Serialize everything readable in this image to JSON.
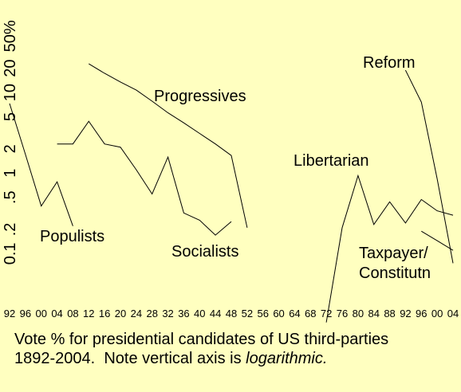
{
  "chart_data": {
    "type": "line",
    "title": "Vote % for presidential candidates of US third-parties 1892-2004.  Note vertical axis is ",
    "title_italic": "logarithmic.",
    "categories": [
      "92",
      "96",
      "00",
      "04",
      "08",
      "12",
      "16",
      "20",
      "24",
      "28",
      "32",
      "36",
      "40",
      "44",
      "48",
      "52",
      "56",
      "60",
      "64",
      "68",
      "72",
      "76",
      "80",
      "84",
      "88",
      "92",
      "96",
      "00",
      "04"
    ],
    "series": [
      {
        "name": "Populists",
        "color": "#000000",
        "values": [
          7.3,
          1.7,
          0.39,
          0.78,
          0.22,
          null,
          null,
          null,
          null,
          null,
          null,
          null,
          null,
          null,
          null,
          null,
          null,
          null,
          null,
          null,
          null,
          null,
          null,
          null,
          null,
          null,
          null,
          null,
          null
        ]
      },
      {
        "name": "Socialists",
        "color": "#000000",
        "values": [
          null,
          null,
          null,
          2.3,
          2.3,
          4.4,
          2.3,
          2.1,
          1.1,
          0.55,
          1.58,
          0.32,
          0.26,
          0.17,
          0.25,
          null,
          null,
          null,
          null,
          null,
          null,
          null,
          null,
          null,
          null,
          null,
          null,
          null,
          null
        ]
      },
      {
        "name": "Progressives",
        "color": "#000000",
        "values": [
          null,
          null,
          null,
          null,
          null,
          22.7,
          17.3,
          13.5,
          10.7,
          7.8,
          5.6,
          4.2,
          3.1,
          2.3,
          1.65,
          0.21,
          null,
          null,
          null,
          null,
          null,
          null,
          null,
          null,
          null,
          null,
          null,
          null,
          null
        ]
      },
      {
        "name": "Libertarian",
        "color": "#000000",
        "values": [
          null,
          null,
          null,
          null,
          null,
          null,
          null,
          null,
          null,
          null,
          null,
          null,
          null,
          null,
          null,
          null,
          null,
          null,
          null,
          null,
          0.014,
          0.21,
          0.93,
          0.23,
          0.44,
          0.24,
          0.47,
          0.34,
          0.3
        ]
      },
      {
        "name": "Reform",
        "color": "#000000",
        "values": [
          null,
          null,
          null,
          null,
          null,
          null,
          null,
          null,
          null,
          null,
          null,
          null,
          null,
          null,
          null,
          null,
          null,
          null,
          null,
          null,
          null,
          null,
          null,
          null,
          null,
          18.9,
          7.6,
          0.85,
          0.076
        ]
      },
      {
        "name": "Taxpayer/\nConstitutn",
        "color": "#000000",
        "values": [
          null,
          null,
          null,
          null,
          null,
          null,
          null,
          null,
          null,
          null,
          null,
          null,
          null,
          null,
          null,
          null,
          null,
          null,
          null,
          null,
          null,
          null,
          null,
          null,
          null,
          null,
          0.19,
          0.145,
          0.11
        ]
      }
    ],
    "log_scale": true,
    "grid": false,
    "ylim": [
      0.013,
      71
    ],
    "yticks": [
      0.1,
      {
        "value": 0.2,
        "label": ".2"
      },
      {
        "value": 0.5,
        "label": ".5"
      },
      1,
      2,
      5,
      10,
      20,
      {
        "value": 50,
        "label": "50%"
      }
    ]
  }
}
